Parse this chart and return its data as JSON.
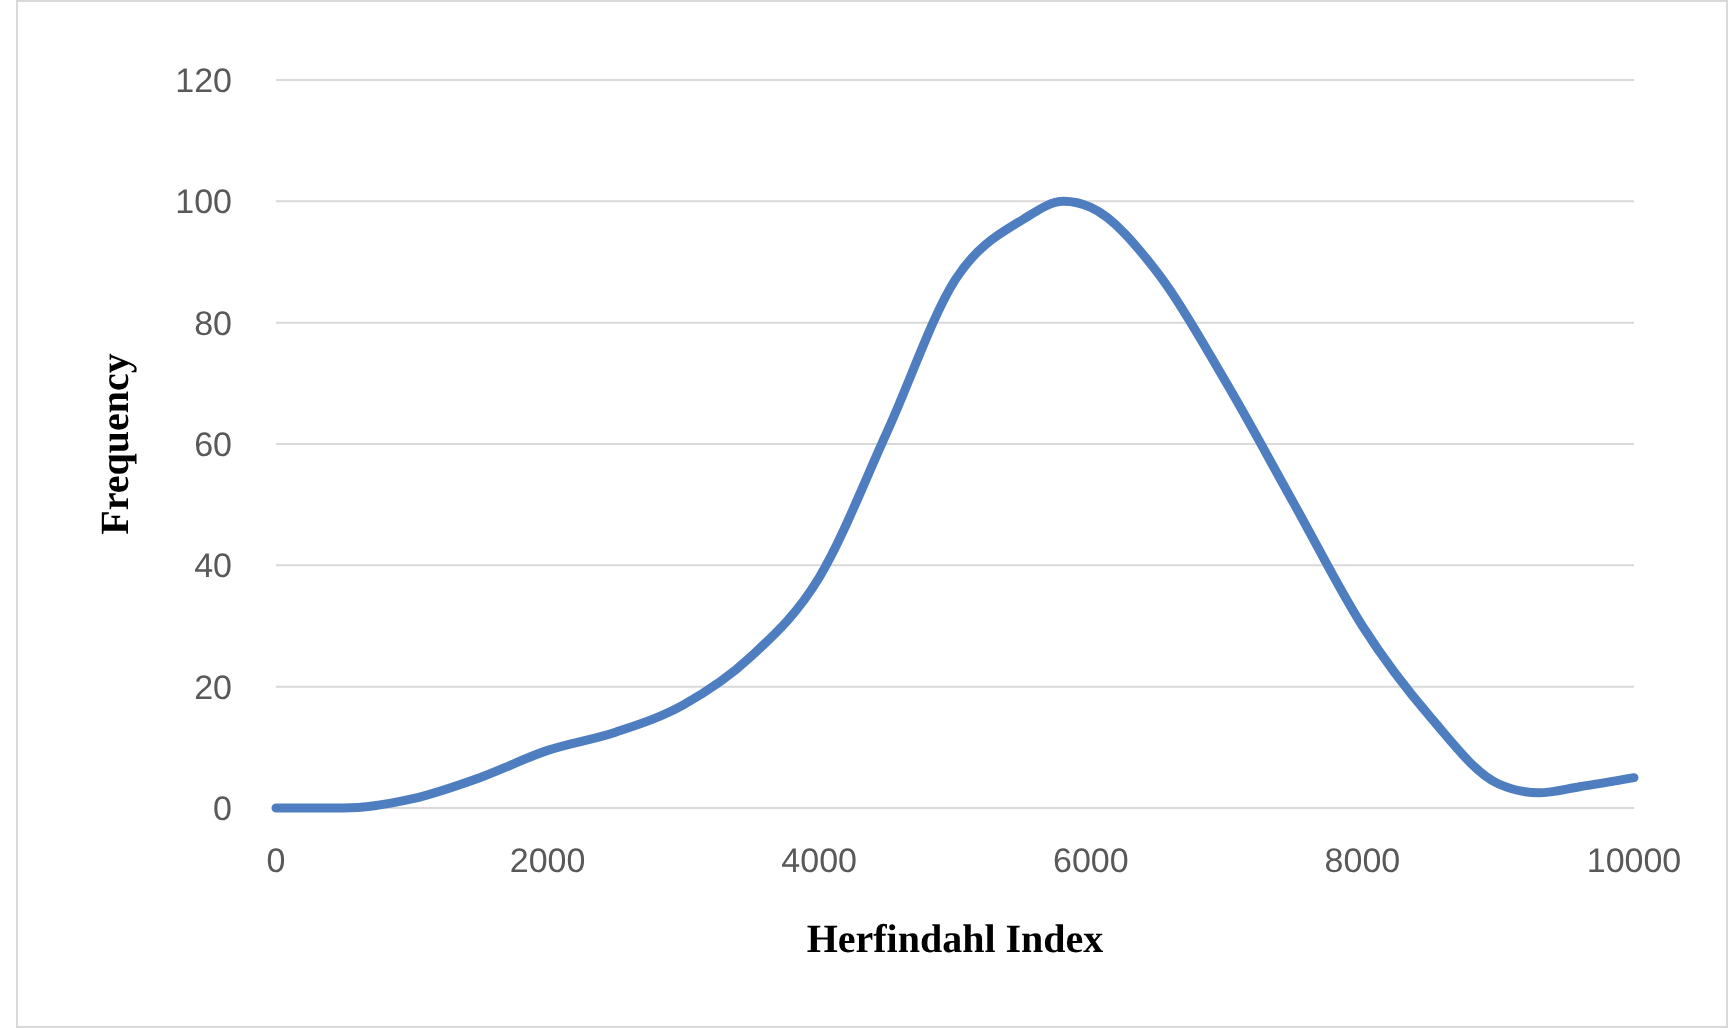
{
  "chart_data": {
    "type": "line",
    "xlabel": "Herfindahl Index",
    "ylabel": "Frequency",
    "x": [
      0,
      500,
      1000,
      1500,
      2000,
      2500,
      3000,
      3500,
      4000,
      4500,
      5000,
      5500,
      5800,
      6000,
      6500,
      7000,
      7500,
      8000,
      8500,
      9000,
      9300,
      9600,
      10000
    ],
    "series": [
      {
        "color": "#4e7ebf",
        "values": [
          0,
          0,
          1.5,
          5,
          9.5,
          12.5,
          17,
          25,
          38,
          62,
          87,
          97,
          100,
          99,
          88,
          70,
          50,
          30,
          15,
          4,
          2.5,
          3.5,
          5
        ]
      }
    ],
    "xlim": [
      0,
      10000
    ],
    "xticks": [
      0,
      2000,
      4000,
      6000,
      8000,
      10000
    ],
    "ylim": [
      0,
      120
    ],
    "yticks": [
      0,
      20,
      40,
      60,
      80,
      100,
      120
    ],
    "grid": "y",
    "marker": "none",
    "line_style": "solid"
  }
}
